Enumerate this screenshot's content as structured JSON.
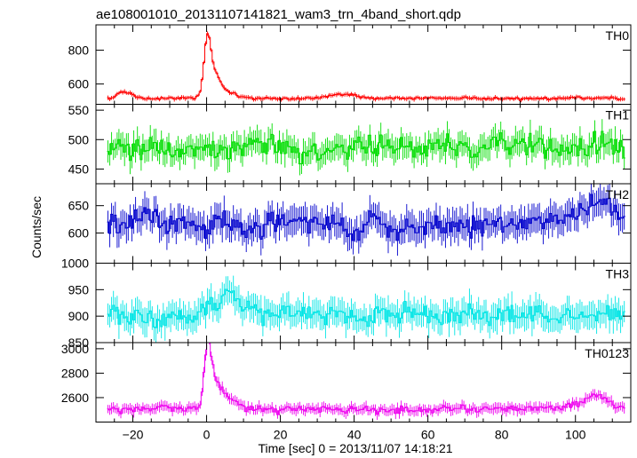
{
  "chart_data": {
    "type": "line",
    "title": "ae108001010_20131107141821_wam3_trn_4band_short.qdp",
    "xlabel": "Time [sec] 0 = 2013/11/07 14:18:21",
    "ylabel": "Counts/sec",
    "xlim": [
      -30,
      115
    ],
    "xticks": [
      -20,
      0,
      20,
      40,
      60,
      80,
      100
    ],
    "xtick_labels": [
      "−20",
      "0",
      "20",
      "40",
      "60",
      "80",
      "100"
    ],
    "bin_width": 0.5,
    "x_start": -27,
    "panels": [
      {
        "name": "TH0",
        "color": "#ff0000",
        "ylim": [
          480,
          950
        ],
        "yticks": [
          600,
          800
        ],
        "baseline": 515,
        "noise": 9,
        "err": 12,
        "peaks": [
          {
            "center": 0.2,
            "amp": 300,
            "width": 0.9
          },
          {
            "center": 2.0,
            "amp": 130,
            "width": 1.6
          },
          {
            "center": 5,
            "amp": 35,
            "width": 3
          },
          {
            "center": -22,
            "amp": 35,
            "width": 2
          },
          {
            "center": 37,
            "amp": 25,
            "width": 4
          }
        ]
      },
      {
        "name": "TH1",
        "color": "#00dd00",
        "ylim": [
          425,
          560
        ],
        "yticks": [
          450,
          500,
          550
        ],
        "baseline": 487,
        "noise": 22,
        "err": 20,
        "peaks": []
      },
      {
        "name": "TH2",
        "color": "#0000cc",
        "ylim": [
          545,
          690
        ],
        "yticks": [
          600,
          650
        ],
        "baseline": 615,
        "noise": 25,
        "err": 25,
        "peaks": [
          {
            "center": 105,
            "amp": 30,
            "width": 8
          }
        ]
      },
      {
        "name": "TH3",
        "color": "#00e5e5",
        "ylim": [
          850,
          1000
        ],
        "yticks": [
          850,
          900,
          950,
          1000
        ],
        "baseline": 902,
        "noise": 22,
        "err": 24,
        "peaks": [
          {
            "center": 5,
            "amp": 25,
            "width": 4
          }
        ]
      },
      {
        "name": "TH0123",
        "color": "#ee00ee",
        "ylim": [
          2400,
          3050
        ],
        "yticks": [
          2600,
          2800,
          3000
        ],
        "baseline": 2510,
        "noise": 35,
        "err": 40,
        "peaks": [
          {
            "center": 0.3,
            "amp": 440,
            "width": 0.9
          },
          {
            "center": 2.2,
            "amp": 190,
            "width": 1.8
          },
          {
            "center": 5,
            "amp": 70,
            "width": 3
          },
          {
            "center": 105,
            "amp": 90,
            "width": 4
          }
        ]
      }
    ]
  }
}
